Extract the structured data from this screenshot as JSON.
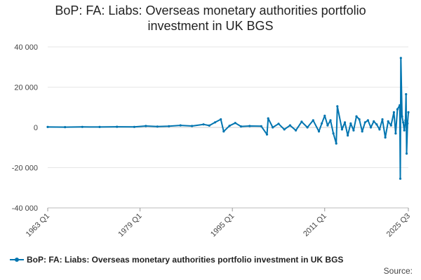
{
  "chart_data": {
    "type": "line",
    "title_lines": [
      "BoP: FA: Liabs: Overseas monetary authorities portfolio",
      "investment in UK BGS"
    ],
    "x_tick_labels": [
      "1963 Q1",
      "1979 Q1",
      "1995 Q1",
      "2011 Q1",
      "2025 Q3"
    ],
    "x_range": [
      1963.0,
      2025.5
    ],
    "ylim": [
      -40000,
      40000
    ],
    "y_ticks": [
      40000,
      20000,
      0,
      -20000,
      -40000
    ],
    "y_tick_labels": [
      "40 000",
      "20 000",
      "0",
      "-20 000",
      "-40 000"
    ],
    "grid": true,
    "legend_position": "bottom-left",
    "series": [
      {
        "name": "BoP: FA: Liabs: Overseas monetary authorities portfolio investment in UK BGS",
        "color": "#0075b0",
        "points": [
          [
            1963.0,
            200
          ],
          [
            1966.0,
            150
          ],
          [
            1969.0,
            250
          ],
          [
            1972.0,
            200
          ],
          [
            1975.0,
            300
          ],
          [
            1978.0,
            250
          ],
          [
            1980.0,
            700
          ],
          [
            1982.0,
            400
          ],
          [
            1984.0,
            600
          ],
          [
            1986.0,
            1000
          ],
          [
            1988.0,
            700
          ],
          [
            1990.0,
            1500
          ],
          [
            1991.0,
            900
          ],
          [
            1992.0,
            2500
          ],
          [
            1993.0,
            4000
          ],
          [
            1993.5,
            -2000
          ],
          [
            1994.5,
            800
          ],
          [
            1995.5,
            2200
          ],
          [
            1996.5,
            500
          ],
          [
            1998.0,
            700
          ],
          [
            2000.0,
            600
          ],
          [
            2001.0,
            -3500
          ],
          [
            2001.2,
            4500
          ],
          [
            2002.0,
            0
          ],
          [
            2003.0,
            1800
          ],
          [
            2004.0,
            -1000
          ],
          [
            2005.0,
            1000
          ],
          [
            2006.0,
            -1500
          ],
          [
            2007.0,
            2800
          ],
          [
            2008.0,
            0
          ],
          [
            2009.0,
            3500
          ],
          [
            2010.0,
            -2000
          ],
          [
            2010.5,
            2000
          ],
          [
            2011.0,
            5800
          ],
          [
            2011.5,
            1000
          ],
          [
            2012.0,
            3500
          ],
          [
            2012.5,
            -3000
          ],
          [
            2013.0,
            -8000
          ],
          [
            2013.2,
            10500
          ],
          [
            2014.0,
            -1000
          ],
          [
            2014.5,
            2500
          ],
          [
            2015.0,
            -4000
          ],
          [
            2015.5,
            2000
          ],
          [
            2016.0,
            -1500
          ],
          [
            2016.5,
            5500
          ],
          [
            2017.0,
            4000
          ],
          [
            2017.5,
            -2000
          ],
          [
            2018.0,
            2500
          ],
          [
            2018.5,
            3500
          ],
          [
            2019.0,
            0
          ],
          [
            2019.5,
            3000
          ],
          [
            2020.0,
            1500
          ],
          [
            2020.5,
            -1000
          ],
          [
            2021.0,
            4000
          ],
          [
            2021.5,
            -5000
          ],
          [
            2022.0,
            3000
          ],
          [
            2022.5,
            1000
          ],
          [
            2023.0,
            7500
          ],
          [
            2023.3,
            -3000
          ],
          [
            2023.6,
            9000
          ],
          [
            2024.0,
            11000
          ],
          [
            2024.1,
            -25500
          ],
          [
            2024.2,
            34500
          ],
          [
            2024.4,
            5500
          ],
          [
            2024.6,
            2500
          ],
          [
            2024.8,
            -1500
          ],
          [
            2025.0,
            3500
          ],
          [
            2025.1,
            16500
          ],
          [
            2025.2,
            -13000
          ],
          [
            2025.35,
            2000
          ],
          [
            2025.5,
            7500
          ]
        ]
      }
    ]
  },
  "legend": {
    "label": "BoP: FA: Liabs: Overseas monetary authorities portfolio investment in UK BGS"
  },
  "source_label": "Source:"
}
